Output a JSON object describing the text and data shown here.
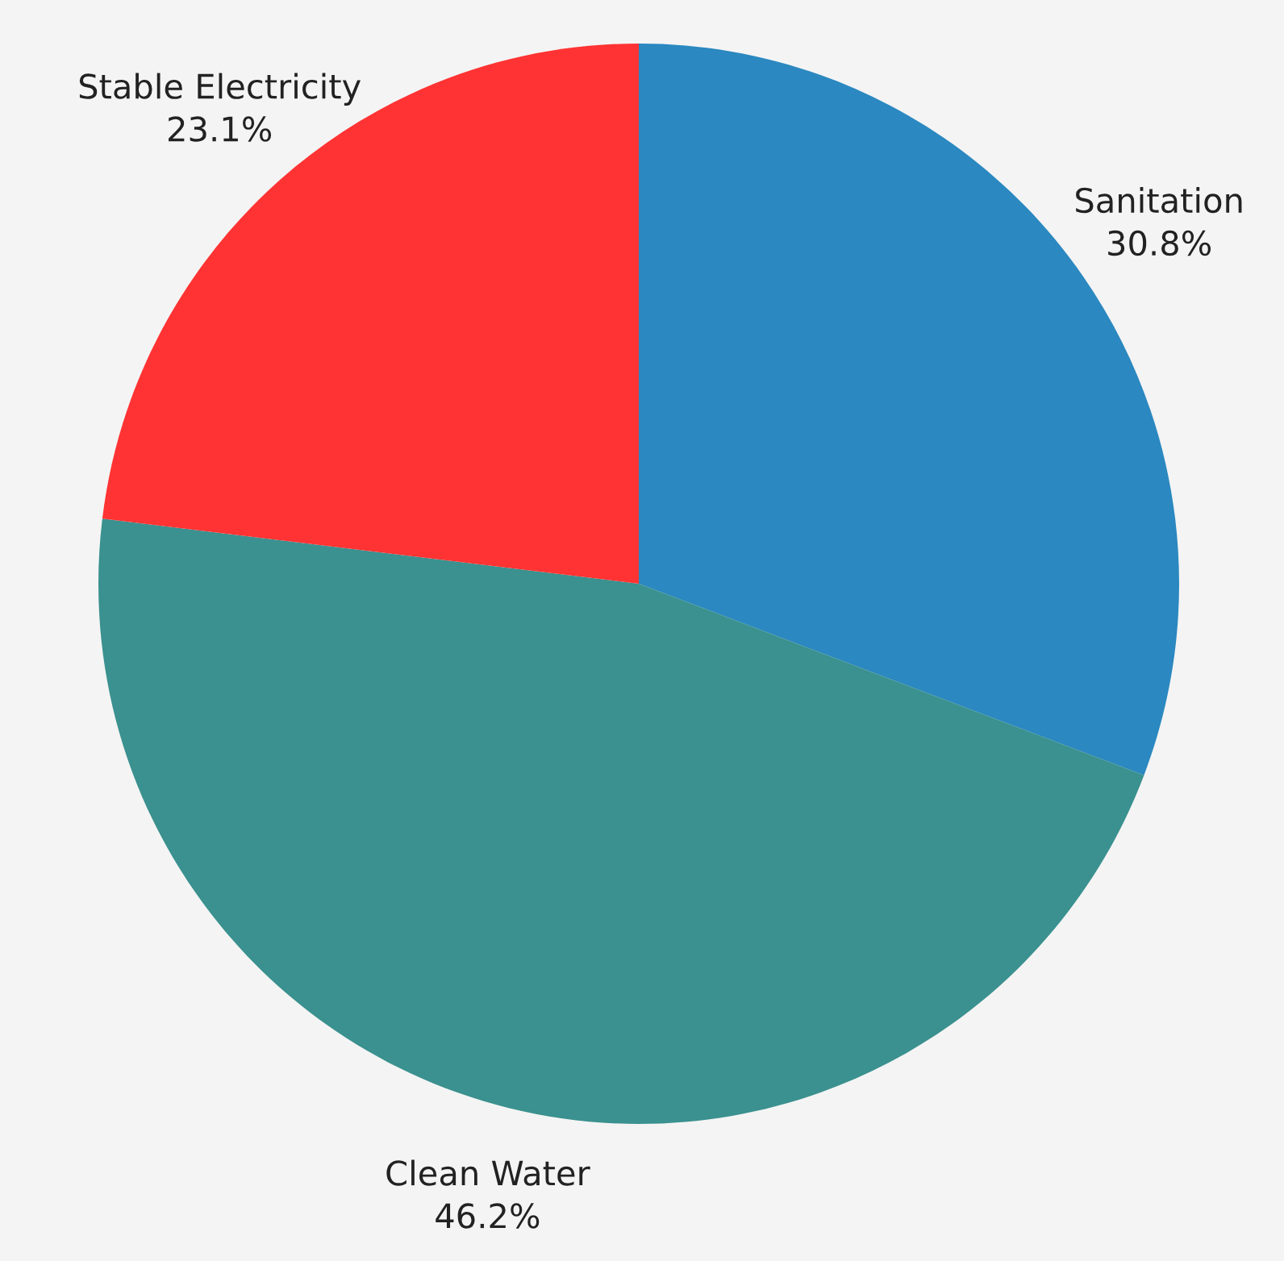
{
  "chart_data": {
    "type": "pie",
    "categories": [
      "Sanitation",
      "Clean Water",
      "Stable Electricity"
    ],
    "values": [
      30.8,
      46.2,
      23.1
    ],
    "colors": [
      "#2b88c0",
      "#3a918f",
      "#ff3333"
    ],
    "value_labels": [
      "30.8%",
      "46.2%",
      "23.1%"
    ],
    "legend": false
  }
}
